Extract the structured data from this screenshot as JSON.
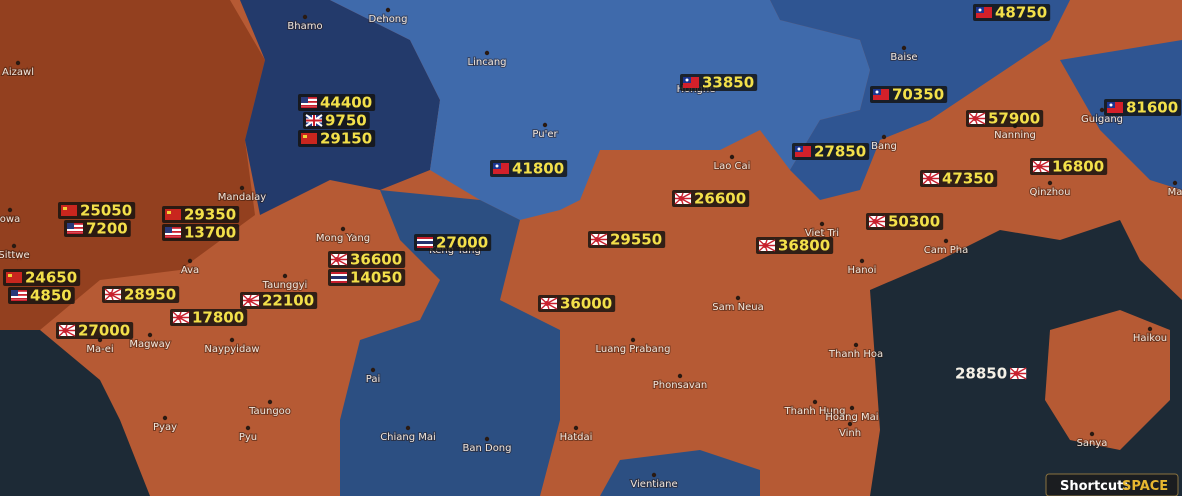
{
  "map": {
    "cities": [
      "Bhamo",
      "Dehong",
      "Aizawl",
      "Lincang",
      "Baise",
      "Honghe",
      "Pu'er",
      "Bang",
      "Guigang",
      "Nanning",
      "Lao Cai",
      "Qinzhou",
      "Mandalay",
      "Ma",
      "owa",
      "Sittwe",
      "Mong Yang",
      "Keng Tung",
      "Viet Tri",
      "Cam Pha",
      "Hanoi",
      "Ava",
      "Taunggyi",
      "Sam Neua",
      "Ma-ei",
      "Magway",
      "Naypyidaw",
      "Luang Prabang",
      "Thanh Hoa",
      "Haikou",
      "Pai",
      "Phonsavan",
      "Taungoo",
      "Thanh Hung",
      "Hoang Mai",
      "Pyay",
      "Vinh",
      "Sanya",
      "Pyu",
      "Chiang Mai",
      "Hatdai",
      "Ban Dong",
      "Vientiane"
    ],
    "units": [
      48750,
      44400,
      9750,
      29150,
      33850,
      70350,
      81600,
      57900,
      41800,
      27850,
      16800,
      47350,
      26600,
      25050,
      7200,
      29350,
      13700,
      50300,
      27000,
      29550,
      36800,
      36600,
      14050,
      24650,
      4850,
      28950,
      22100,
      36000,
      17800,
      27000
    ],
    "naval": 28850,
    "shortcut": {
      "label": "Shortcut:",
      "key": "SPACE"
    }
  }
}
